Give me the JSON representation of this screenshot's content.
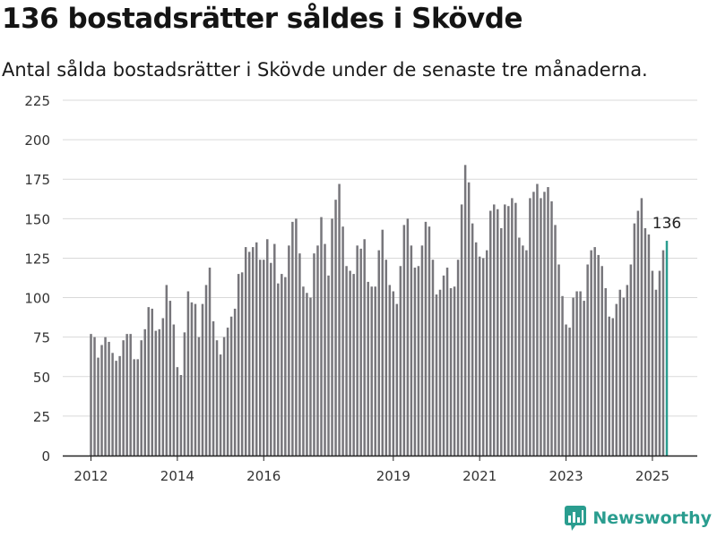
{
  "header": {
    "title": "136 bostadsrätter såldes i Skövde",
    "subtitle": "Antal sålda bostadsrätter i Skövde under de senaste tre månaderna."
  },
  "brand": {
    "name": "Newsworthy",
    "icon": "newsworthy-logo-icon",
    "color": "#2a9d8f"
  },
  "chart_data": {
    "type": "bar",
    "title": "136 bostadsrätter såldes i Skövde",
    "subtitle": "Antal sålda bostadsrätter i Skövde under de senaste tre månaderna.",
    "xlabel": "",
    "ylabel": "",
    "ylim": [
      0,
      225
    ],
    "yticks": [
      0,
      25,
      50,
      75,
      100,
      125,
      150,
      175,
      200,
      225
    ],
    "xticks": [
      "2012",
      "2014",
      "2016",
      "2019",
      "2021",
      "2023",
      "2025"
    ],
    "grid": true,
    "bar_color": "#77767b",
    "highlight_color": "#2a9d8f",
    "highlight_label": "136",
    "values": [
      77,
      75,
      62,
      70,
      75,
      72,
      65,
      60,
      63,
      73,
      77,
      77,
      61,
      61,
      73,
      80,
      94,
      93,
      79,
      80,
      87,
      108,
      98,
      83,
      56,
      51,
      78,
      104,
      97,
      96,
      75,
      96,
      108,
      119,
      85,
      73,
      64,
      75,
      81,
      88,
      93,
      115,
      116,
      132,
      129,
      132,
      135,
      124,
      124,
      137,
      122,
      134,
      109,
      115,
      113,
      133,
      148,
      150,
      128,
      107,
      103,
      100,
      128,
      133,
      151,
      134,
      114,
      150,
      162,
      172,
      145,
      120,
      117,
      115,
      133,
      131,
      137,
      110,
      107,
      107,
      130,
      143,
      124,
      108,
      104,
      96,
      120,
      146,
      150,
      133,
      119,
      120,
      133,
      148,
      145,
      124,
      102,
      105,
      114,
      119,
      106,
      107,
      124,
      159,
      184,
      173,
      147,
      135,
      126,
      125,
      130,
      155,
      159,
      156,
      144,
      159,
      158,
      163,
      160,
      138,
      133,
      130,
      163,
      167,
      172,
      163,
      167,
      170,
      161,
      146,
      121,
      101,
      83,
      81,
      100,
      104,
      104,
      98,
      121,
      130,
      132,
      127,
      120,
      106,
      88,
      87,
      96,
      105,
      100,
      108,
      121,
      147,
      155,
      163,
      144,
      140,
      117,
      105,
      117,
      130,
      136
    ]
  }
}
